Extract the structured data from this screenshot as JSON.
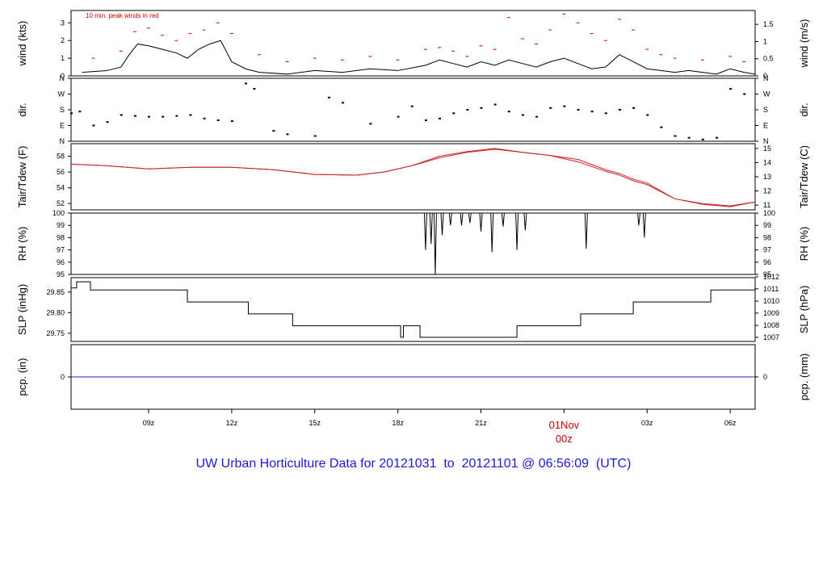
{
  "footer_title": "UW Urban Horticulture Data for 20121031  to  20121101 @ 06:56:09  (UTC)",
  "colors": {
    "temp": "#cc2222",
    "peak": "#cc0000",
    "precip": "#2222cc",
    "line": "#000000",
    "midnight_label": "#cc0000"
  },
  "chart_data": [
    {
      "id": "wind",
      "type": "line",
      "ylabel_left": "wind (kts)",
      "ylabel_right": "wind (m/s)",
      "ylim": [
        0,
        3.7
      ],
      "yticks_left": [
        0,
        1,
        2,
        3
      ],
      "yticks_right": [
        {
          "label": "0",
          "at": 0
        },
        {
          "label": "0.5",
          "at": 0.972
        },
        {
          "label": "1",
          "at": 1.944
        },
        {
          "label": "1.5",
          "at": 2.916
        }
      ],
      "annotation": "10 min. peak winds in red",
      "series": [
        {
          "values_desc": "mean wind",
          "x": [
            6.6,
            7.5,
            8.0,
            8.3,
            8.6,
            9.0,
            9.5,
            10.0,
            10.4,
            10.8,
            11.2,
            11.6,
            12.0,
            12.5,
            13.0,
            14.0,
            15.0,
            16.0,
            17.0,
            18.0,
            19.0,
            19.5,
            20.0,
            20.5,
            21.0,
            21.5,
            22.0,
            22.5,
            23.0,
            23.5,
            24.0,
            24.5,
            25.0,
            25.5,
            26.0,
            26.5,
            27.0,
            27.5,
            28.0,
            28.5,
            29.0,
            29.5,
            30.0,
            30.5,
            30.9
          ],
          "y": [
            0.2,
            0.3,
            0.5,
            1.2,
            1.8,
            1.7,
            1.5,
            1.3,
            1.0,
            1.5,
            1.8,
            2.0,
            0.8,
            0.4,
            0.2,
            0.1,
            0.3,
            0.2,
            0.4,
            0.3,
            0.6,
            0.9,
            0.7,
            0.5,
            0.8,
            0.6,
            0.9,
            0.7,
            0.5,
            0.8,
            1.0,
            0.7,
            0.4,
            0.5,
            1.2,
            0.8,
            0.4,
            0.3,
            0.2,
            0.3,
            0.2,
            0.1,
            0.4,
            0.2,
            0.1
          ]
        },
        {
          "values_desc": "10 min peak",
          "x": [
            7.0,
            8.0,
            8.5,
            9.0,
            9.5,
            10.0,
            10.5,
            11.0,
            11.5,
            12.0,
            13.0,
            14.0,
            15.0,
            16.0,
            17.0,
            18.0,
            19.0,
            19.5,
            20.0,
            20.5,
            21.0,
            21.5,
            22.0,
            22.5,
            23.0,
            23.5,
            24.0,
            24.5,
            25.0,
            25.5,
            26.0,
            26.5,
            27.0,
            27.5,
            28.0,
            29.0,
            30.0,
            30.5
          ],
          "y": [
            1.0,
            1.4,
            2.5,
            2.7,
            2.3,
            2.0,
            2.4,
            2.6,
            3.0,
            2.4,
            1.2,
            0.8,
            1.0,
            0.9,
            1.1,
            0.9,
            1.5,
            1.6,
            1.4,
            1.1,
            1.7,
            1.5,
            3.3,
            2.1,
            1.8,
            2.6,
            3.5,
            3.0,
            2.4,
            2.0,
            3.2,
            2.6,
            1.5,
            1.2,
            1.0,
            0.9,
            1.1,
            0.8
          ]
        }
      ]
    },
    {
      "id": "dir",
      "type": "scatter",
      "ylabel_left": "dir.",
      "ylabel_right": "dir.",
      "ylim": [
        0,
        360
      ],
      "yticks_left": [
        {
          "label": "N",
          "at": 0
        },
        {
          "label": "E",
          "at": 90
        },
        {
          "label": "S",
          "at": 180
        },
        {
          "label": "W",
          "at": 270
        },
        {
          "label": "N",
          "at": 360
        }
      ],
      "yticks_right": [
        {
          "label": "N",
          "at": 0
        },
        {
          "label": "E",
          "at": 90
        },
        {
          "label": "S",
          "at": 180
        },
        {
          "label": "W",
          "at": 270
        },
        {
          "label": "N",
          "at": 360
        }
      ],
      "x": [
        6.2,
        6.5,
        7.0,
        7.5,
        8.0,
        8.5,
        9.0,
        9.5,
        10.0,
        10.5,
        11.0,
        11.5,
        12.0,
        12.5,
        12.8,
        13.5,
        14.0,
        15.0,
        15.5,
        16.0,
        17.0,
        18.0,
        18.5,
        19.0,
        19.5,
        20.0,
        20.5,
        21.0,
        21.5,
        22.0,
        22.5,
        23.0,
        23.5,
        24.0,
        24.5,
        25.0,
        25.5,
        26.0,
        26.5,
        27.0,
        27.5,
        28.0,
        28.5,
        29.0,
        29.5,
        30.0,
        30.5
      ],
      "y": [
        160,
        170,
        90,
        110,
        150,
        145,
        140,
        140,
        145,
        150,
        130,
        120,
        115,
        330,
        300,
        60,
        40,
        30,
        250,
        220,
        100,
        140,
        200,
        120,
        130,
        160,
        180,
        190,
        210,
        170,
        150,
        140,
        190,
        200,
        180,
        170,
        160,
        180,
        190,
        150,
        80,
        30,
        20,
        10,
        20,
        300,
        270
      ]
    },
    {
      "id": "temp",
      "type": "line",
      "ylabel_left": "Tair/Tdew (F)",
      "ylabel_right": "Tair/Tdew (C)",
      "ylim": [
        51.2,
        59.6
      ],
      "yticks_left": [
        52,
        54,
        56,
        58
      ],
      "yticks_right": [
        {
          "label": "11",
          "at": 51.8
        },
        {
          "label": "12",
          "at": 53.6
        },
        {
          "label": "13",
          "at": 55.4
        },
        {
          "label": "14",
          "at": 57.2
        },
        {
          "label": "15",
          "at": 59.0
        }
      ],
      "series": [
        {
          "name": "",
          "x": [
            6.2,
            7.5,
            9.0,
            10.5,
            12.0,
            13.5,
            15.0,
            16.5,
            17.5,
            18.5,
            19.5,
            20.5,
            21.5,
            22.5,
            23.5,
            24.5,
            25.5,
            26.0,
            26.5,
            27.0,
            28.0,
            29.0,
            30.0,
            30.9
          ],
          "y": [
            57.0,
            56.8,
            56.4,
            56.6,
            56.6,
            56.3,
            55.7,
            55.6,
            56.0,
            56.8,
            58.0,
            58.6,
            59.0,
            58.5,
            58.1,
            57.6,
            56.3,
            55.8,
            55.1,
            54.6,
            52.6,
            52.0,
            51.7,
            52.2
          ]
        },
        {
          "name": "",
          "x": [
            6.2,
            7.5,
            9.0,
            10.5,
            12.0,
            13.5,
            15.0,
            16.5,
            17.5,
            18.5,
            19.5,
            20.5,
            21.5,
            22.5,
            23.5,
            24.5,
            25.5,
            26.0,
            26.5,
            27.0,
            28.0,
            29.0,
            30.0,
            30.9
          ],
          "y": [
            57.0,
            56.8,
            56.4,
            56.6,
            56.6,
            56.3,
            55.7,
            55.6,
            56.0,
            56.8,
            57.8,
            58.5,
            58.9,
            58.5,
            58.1,
            57.3,
            56.1,
            55.6,
            54.9,
            54.4,
            52.6,
            51.9,
            51.6,
            52.2
          ]
        }
      ]
    },
    {
      "id": "rh",
      "type": "line",
      "ylabel_left": "RH (%)",
      "ylabel_right": "RH (%)",
      "ylim": [
        95,
        100
      ],
      "yticks_left": [
        95,
        96,
        97,
        98,
        99,
        100
      ],
      "yticks_right": [
        {
          "label": "95",
          "at": 95
        },
        {
          "label": "96",
          "at": 96
        },
        {
          "label": "97",
          "at": 97
        },
        {
          "label": "98",
          "at": 98
        },
        {
          "label": "99",
          "at": 99
        },
        {
          "label": "100",
          "at": 100
        }
      ],
      "dips": [
        [
          19.0,
          97.0
        ],
        [
          19.2,
          97.5
        ],
        [
          19.35,
          95.0
        ],
        [
          19.6,
          98.2
        ],
        [
          19.9,
          99.0
        ],
        [
          20.3,
          99.0
        ],
        [
          20.6,
          99.2
        ],
        [
          21.0,
          98.5
        ],
        [
          21.4,
          96.8
        ],
        [
          21.8,
          98.9
        ],
        [
          22.3,
          97.0
        ],
        [
          22.6,
          98.6
        ],
        [
          24.8,
          97.1
        ],
        [
          26.7,
          99.0
        ],
        [
          26.9,
          98.0
        ]
      ]
    },
    {
      "id": "slp",
      "type": "line",
      "ylabel_left": "SLP (inHg)",
      "ylabel_right": "SLP (hPa)",
      "ylim": [
        29.73,
        29.885
      ],
      "yticks_left": [
        29.75,
        29.8,
        29.85
      ],
      "yticks_right": [
        {
          "label": "1007",
          "at": 29.74
        },
        {
          "label": "1008",
          "at": 29.769
        },
        {
          "label": "1009",
          "at": 29.799
        },
        {
          "label": "1010",
          "at": 29.828
        },
        {
          "label": "1011",
          "at": 29.858
        },
        {
          "label": "1012",
          "at": 29.887
        }
      ],
      "x": [
        6.2,
        6.4,
        6.4,
        6.9,
        6.9,
        10.4,
        10.4,
        12.6,
        12.6,
        14.2,
        14.2,
        18.1,
        18.1,
        18.2,
        18.2,
        18.8,
        18.8,
        22.3,
        22.3,
        24.6,
        24.6,
        24.7,
        24.7,
        26.5,
        26.5,
        29.3,
        29.3,
        30.9
      ],
      "y": [
        29.86,
        29.86,
        29.875,
        29.875,
        29.855,
        29.855,
        29.826,
        29.826,
        29.797,
        29.797,
        29.768,
        29.768,
        29.74,
        29.74,
        29.768,
        29.768,
        29.74,
        29.74,
        29.768,
        29.768,
        29.797,
        29.797,
        29.797,
        29.797,
        29.826,
        29.826,
        29.855,
        29.855
      ]
    },
    {
      "id": "pcp",
      "type": "line",
      "ylabel_left": "pcp. (in)",
      "ylabel_right": "pcp. (mm)",
      "ylim": [
        -1,
        1
      ],
      "yticks_left": [
        0
      ],
      "yticks_right": [
        {
          "label": "0",
          "at": 0
        }
      ],
      "x": [
        6.2,
        30.9
      ],
      "y": [
        0,
        0
      ]
    }
  ],
  "x_axis": {
    "xlim": [
      6.2,
      30.9
    ],
    "ticks": [
      {
        "label": "09z",
        "at": 9
      },
      {
        "label": "12z",
        "at": 12
      },
      {
        "label": "15z",
        "at": 15
      },
      {
        "label": "18z",
        "at": 18
      },
      {
        "label": "21z",
        "at": 21
      },
      {
        "label": "03z",
        "at": 27
      },
      {
        "label": "06z",
        "at": 30
      }
    ],
    "midnight_tick_at": 24,
    "midnight_label_top": "01Nov",
    "midnight_label_bottom": "00z"
  }
}
